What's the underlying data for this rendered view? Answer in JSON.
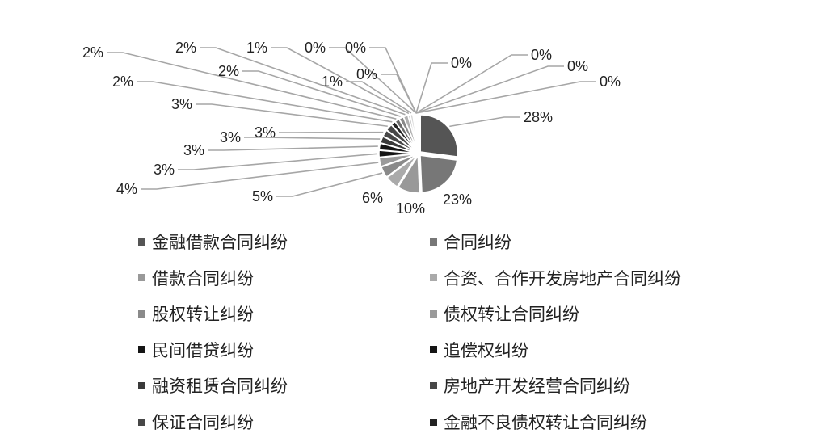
{
  "chart_data": {
    "type": "pie",
    "title": "",
    "values": [
      28,
      23,
      10,
      6,
      5,
      4,
      3,
      3,
      3,
      3,
      3,
      2,
      2,
      2,
      2,
      1,
      1,
      0,
      0,
      0,
      0,
      0,
      0,
      0
    ],
    "data_labels": [
      "28%",
      "23%",
      "10%",
      "6%",
      "5%",
      "4%",
      "3%",
      "3%",
      "3%",
      "3%",
      "3%",
      "2%",
      "2%",
      "2%",
      "2%",
      "1%",
      "1%",
      "0%",
      "0%",
      "0%",
      "0%",
      "0%",
      "0%",
      "0%"
    ],
    "legend": {
      "placement": "bottom",
      "categories": [
        "金融借款合同纠纷",
        "合同纠纷",
        "借款合同纠纷",
        "合资、合作开发房地产合同纠纷",
        "股权转让纠纷",
        "债权转让合同纠纷",
        "民间借贷纠纷",
        "追偿权纠纷",
        "融资租赁合同纠纷",
        "房地产开发经营合同纠纷",
        "保证合同纠纷",
        "金融不良债权转让合同纠纷"
      ]
    },
    "colors": [
      "#555555",
      "#777777",
      "#999999",
      "#aaaaaa",
      "#8a8a8a",
      "#9a9a9a",
      "#151515",
      "#151515",
      "#3a3a3a",
      "#474747",
      "#474747",
      "#222222",
      "#6a6a6a",
      "#888888",
      "#b0b0b0",
      "#c0c0c0",
      "#cccccc",
      "#dddddd",
      "#dddddd",
      "#dddddd",
      "#dddddd",
      "#dddddd",
      "#dddddd",
      "#dddddd"
    ],
    "leader_line_color": "#a6a6a6"
  }
}
